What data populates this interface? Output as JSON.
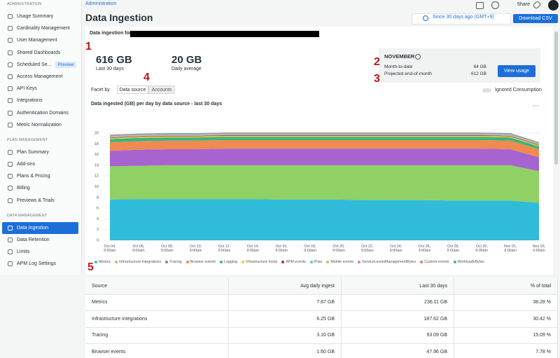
{
  "sidebar": {
    "sections": [
      {
        "title": "ADMINISTRATION",
        "items": [
          {
            "label": "Usage Summary"
          },
          {
            "label": "Cardinality Management"
          },
          {
            "label": "User Management"
          },
          {
            "label": "Shared Dashboards"
          },
          {
            "label": "Scheduled Se...",
            "badge": "Preview"
          },
          {
            "label": "Access Management"
          },
          {
            "label": "API Keys"
          },
          {
            "label": "Integrations"
          },
          {
            "label": "Authentication Domains"
          },
          {
            "label": "Metric Normalization"
          }
        ]
      },
      {
        "title": "PLAN MANAGEMENT",
        "items": [
          {
            "label": "Plan Summary"
          },
          {
            "label": "Add-ons"
          },
          {
            "label": "Plans & Pricing"
          },
          {
            "label": "Billing"
          },
          {
            "label": "Previews & Trials"
          }
        ]
      },
      {
        "title": "DATA MANAGEMENT",
        "items": [
          {
            "label": "Data Ingestion",
            "active": true
          },
          {
            "label": "Data Retention"
          },
          {
            "label": "Limits"
          },
          {
            "label": "APM Log Settings"
          }
        ]
      }
    ]
  },
  "header": {
    "breadcrumb": "Administration",
    "title": "Data Ingestion",
    "share": "Share",
    "time_range": "Since 30 days ago (GMT+9)",
    "download": "Download CSV"
  },
  "summary": {
    "heading": "Data ingestion for",
    "stats": [
      {
        "value": "616 GB",
        "label": "Last 30 days"
      },
      {
        "value": "20 GB",
        "label": "Daily average"
      }
    ]
  },
  "november": {
    "title": "NOVEMBER",
    "rows": [
      [
        "Month-to-date",
        "64 GB"
      ],
      [
        "Projected end-of-month",
        "612 GB"
      ]
    ],
    "button": "View usage"
  },
  "facet": {
    "label": "Facet by",
    "options": [
      "Data source",
      "Accounts"
    ],
    "selected": 0,
    "toggle": "Ignored Consumption"
  },
  "annotations": [
    "1",
    "2",
    "3",
    "4",
    "5"
  ],
  "chart_data": {
    "type": "area",
    "stacked": true,
    "grid": true,
    "legend": "bottom",
    "title": "Data ingested (GB) per day by data source - last 30 days",
    "categories": [
      "Oct 04, 9:00am",
      "Oct 06, 9:00am",
      "Oct 08, 9:00am",
      "Oct 10, 9:00am",
      "Oct 12, 9:00am",
      "Oct 14, 9:00am",
      "Oct 16, 9:00am",
      "Oct 18, 9:00am",
      "Oct 20, 9:00am",
      "Oct 22, 9:00am",
      "Oct 24, 9:00am",
      "Oct 26, 9:00am",
      "Oct 28, 9:00am",
      "Oct 30, 9:00am",
      "Nov 01, 9:00am",
      "Nov 03, 9:00am"
    ],
    "ylim": [
      0,
      20
    ],
    "yticks": [
      0,
      2,
      4,
      6,
      8,
      10,
      12,
      14,
      16,
      18,
      20
    ],
    "series": [
      {
        "name": "Metrics",
        "color": "#30bcd8",
        "values": [
          7.6,
          7.7,
          7.7,
          7.7,
          7.7,
          7.7,
          7.6,
          7.6,
          7.6,
          7.5,
          7.5,
          7.5,
          7.4,
          7.4,
          7.4,
          7.0
        ]
      },
      {
        "name": "Infrastructure integrations",
        "color": "#8fd165",
        "values": [
          6.2,
          6.2,
          6.3,
          6.3,
          6.3,
          6.3,
          6.4,
          6.4,
          6.4,
          6.5,
          6.5,
          6.5,
          6.6,
          6.6,
          6.6,
          5.9
        ]
      },
      {
        "name": "Tracing",
        "color": "#a764d0",
        "values": [
          2.9,
          3.0,
          3.0,
          3.0,
          3.1,
          3.1,
          3.1,
          3.1,
          3.1,
          3.1,
          3.1,
          3.1,
          3.1,
          3.1,
          3.0,
          2.6
        ]
      },
      {
        "name": "Browser events",
        "color": "#f08a50",
        "values": [
          1.6,
          1.6,
          1.6,
          1.6,
          1.6,
          1.6,
          1.6,
          1.6,
          1.6,
          1.6,
          1.6,
          1.6,
          1.6,
          1.6,
          1.6,
          1.5
        ]
      },
      {
        "name": "Logging",
        "color": "#35b87c",
        "values": [
          0.6,
          0.6,
          0.6,
          0.6,
          0.6,
          0.6,
          0.6,
          0.6,
          0.6,
          0.6,
          0.6,
          0.6,
          0.6,
          0.6,
          0.6,
          0.5
        ]
      },
      {
        "name": "Infrastructure hosts",
        "color": "#f3c440",
        "values": [
          0.2,
          0.2,
          0.2,
          0.2,
          0.2,
          0.2,
          0.2,
          0.2,
          0.2,
          0.2,
          0.2,
          0.2,
          0.2,
          0.2,
          0.2,
          0.2
        ]
      },
      {
        "name": "APM events",
        "color": "#b02c62",
        "values": [
          0.1,
          0.1,
          0.1,
          0.1,
          0.1,
          0.1,
          0.1,
          0.1,
          0.1,
          0.1,
          0.1,
          0.1,
          0.1,
          0.1,
          0.1,
          0.1
        ]
      },
      {
        "name": "Pixie",
        "color": "#5ccbe4",
        "values": [
          0.1,
          0.1,
          0.1,
          0.1,
          0.1,
          0.1,
          0.1,
          0.1,
          0.1,
          0.1,
          0.1,
          0.1,
          0.1,
          0.1,
          0.1,
          0.1
        ]
      },
      {
        "name": "Mobile events",
        "color": "#a8d85a",
        "values": [
          0.1,
          0.1,
          0.1,
          0.1,
          0.1,
          0.1,
          0.1,
          0.1,
          0.1,
          0.1,
          0.1,
          0.1,
          0.1,
          0.1,
          0.1,
          0.1
        ]
      },
      {
        "name": "ServiceLevelsManagementBytes",
        "color": "#d57ed8",
        "values": [
          0.1,
          0.1,
          0.1,
          0.1,
          0.1,
          0.1,
          0.1,
          0.1,
          0.1,
          0.1,
          0.1,
          0.1,
          0.1,
          0.1,
          0.1,
          0.1
        ]
      },
      {
        "name": "Custom events",
        "color": "#f0765a",
        "values": [
          0.1,
          0.1,
          0.1,
          0.1,
          0.1,
          0.1,
          0.1,
          0.1,
          0.1,
          0.1,
          0.1,
          0.1,
          0.1,
          0.1,
          0.1,
          0.1
        ]
      },
      {
        "name": "WorkloadsBytes",
        "color": "#3db3a2",
        "values": [
          0.1,
          0.1,
          0.1,
          0.1,
          0.1,
          0.1,
          0.1,
          0.1,
          0.1,
          0.1,
          0.1,
          0.1,
          0.1,
          0.1,
          0.1,
          0.1
        ]
      }
    ]
  },
  "table": {
    "columns": [
      "Source",
      "Avg daily ingest",
      "Last 30 days",
      "% of total"
    ],
    "rows": [
      [
        "Metrics",
        "7.87 GB",
        "236.11 GB",
        "38.28 %"
      ],
      [
        "Infrastructure integrations",
        "6.25 GB",
        "187.62 GB",
        "30.42 %"
      ],
      [
        "Tracing",
        "3.10 GB",
        "93.09 GB",
        "15.09 %"
      ],
      [
        "Browser events",
        "1.60 GB",
        "47.96 GB",
        "7.78 %"
      ]
    ]
  }
}
